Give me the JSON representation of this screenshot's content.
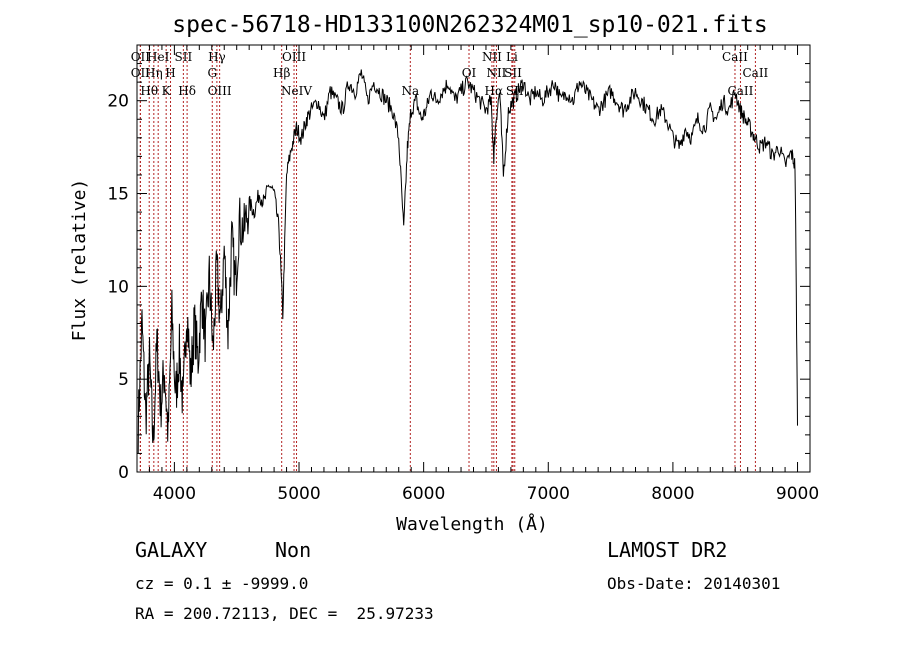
{
  "chart_data": {
    "type": "line",
    "title": "spec-56718-HD133100N262324M01_sp10-021.fits",
    "xlabel": "Wavelength (Å)",
    "ylabel": "Flux (relative)",
    "xlim": [
      3700,
      9100
    ],
    "ylim": [
      0,
      23
    ],
    "x_ticks": [
      4000,
      5000,
      6000,
      7000,
      8000,
      9000
    ],
    "y_ticks": [
      0,
      5,
      10,
      15,
      20
    ],
    "grid": false,
    "series": [
      {
        "x": [
          3710,
          3740,
          3770,
          3800,
          3830,
          3860,
          3890,
          3920,
          3950,
          3980,
          4010,
          4040,
          4070,
          4100,
          4130,
          4160,
          4190,
          4220,
          4250,
          4280,
          4310,
          4340,
          4370,
          4400,
          4430,
          4460,
          4490,
          4520,
          4560,
          4600,
          4640,
          4680,
          4720,
          4760,
          4800,
          4840,
          4870,
          4900,
          4940,
          4980,
          5020,
          5060,
          5100,
          5150,
          5200,
          5250,
          5300,
          5350,
          5400,
          5450,
          5500,
          5550,
          5600,
          5650,
          5700,
          5750,
          5800,
          5840,
          5870,
          5900,
          5940,
          5980,
          6020,
          6060,
          6100,
          6150,
          6200,
          6250,
          6300,
          6350,
          6400,
          6450,
          6500,
          6540,
          6563,
          6580,
          6610,
          6640,
          6680,
          6720,
          6760,
          6800,
          6850,
          6900,
          6950,
          7000,
          7050,
          7100,
          7150,
          7200,
          7250,
          7300,
          7350,
          7400,
          7450,
          7500,
          7550,
          7600,
          7650,
          7700,
          7750,
          7800,
          7850,
          7900,
          7950,
          8000,
          8050,
          8100,
          8150,
          8200,
          8250,
          8300,
          8350,
          8400,
          8450,
          8500,
          8540,
          8580,
          8620,
          8660,
          8700,
          8750,
          8800,
          8850,
          8900,
          8950,
          8980,
          9000
        ],
        "y": [
          2.5,
          8.0,
          3.0,
          6.0,
          1.5,
          7.0,
          3.5,
          5.5,
          2.0,
          8.5,
          4.0,
          6.5,
          3.5,
          9.0,
          5.0,
          8.0,
          6.0,
          9.5,
          7.0,
          10.5,
          6.5,
          11.0,
          8.0,
          12.0,
          7.5,
          12.5,
          10.0,
          13.5,
          13.0,
          14.5,
          14.0,
          15.0,
          14.5,
          15.5,
          15.0,
          13.0,
          8.5,
          16.0,
          17.5,
          18.5,
          18.0,
          19.0,
          19.5,
          20.0,
          19.0,
          20.5,
          20.0,
          19.5,
          21.0,
          20.5,
          21.5,
          20.0,
          21.0,
          20.5,
          20.0,
          19.5,
          18.0,
          13.0,
          17.5,
          19.5,
          20.0,
          19.0,
          19.5,
          20.5,
          20.0,
          20.5,
          21.0,
          20.0,
          20.5,
          21.0,
          20.5,
          20.0,
          19.5,
          20.0,
          17.0,
          19.0,
          20.5,
          16.0,
          19.5,
          20.0,
          20.5,
          21.0,
          20.0,
          20.5,
          20.0,
          20.5,
          21.0,
          20.0,
          20.5,
          20.0,
          21.0,
          20.5,
          20.0,
          19.5,
          20.0,
          20.5,
          20.0,
          19.5,
          20.0,
          20.5,
          20.0,
          19.5,
          19.0,
          19.5,
          19.0,
          18.0,
          17.5,
          18.5,
          18.0,
          19.0,
          18.5,
          19.5,
          19.0,
          20.0,
          19.5,
          20.5,
          19.5,
          19.0,
          18.5,
          18.0,
          17.5,
          17.8,
          17.0,
          17.5,
          16.5,
          17.2,
          16.5,
          2.5
        ]
      }
    ],
    "line_markers": [
      {
        "x": 3727,
        "label": "OII",
        "row": 0
      },
      {
        "x": 3727,
        "label": "OII",
        "row": 1
      },
      {
        "x": 3798,
        "label": "Hθ",
        "row": 2
      },
      {
        "x": 3835,
        "label": "Hη",
        "row": 1
      },
      {
        "x": 3870,
        "label": "HeI",
        "row": 0
      },
      {
        "x": 3934,
        "label": "K",
        "row": 2
      },
      {
        "x": 3969,
        "label": "H",
        "row": 1
      },
      {
        "x": 4072,
        "label": "SII",
        "row": 0
      },
      {
        "x": 4102,
        "label": "Hδ",
        "row": 2
      },
      {
        "x": 4304,
        "label": "G",
        "row": 1
      },
      {
        "x": 4341,
        "label": "Hγ",
        "row": 0
      },
      {
        "x": 4363,
        "label": "OIII",
        "row": 2
      },
      {
        "x": 4861,
        "label": "Hβ",
        "row": 1
      },
      {
        "x": 4960,
        "label": "OIII",
        "row": 0
      },
      {
        "x": 4980,
        "label": "NeIV",
        "row": 2
      },
      {
        "x": 5893,
        "label": "Na",
        "row": 2
      },
      {
        "x": 6364,
        "label": "OI",
        "row": 1
      },
      {
        "x": 6548,
        "label": "NII",
        "row": 0
      },
      {
        "x": 6563,
        "label": "Hα",
        "row": 2
      },
      {
        "x": 6584,
        "label": "NII",
        "row": 1
      },
      {
        "x": 6717,
        "label": "SII",
        "row": 1
      },
      {
        "x": 6708,
        "label": "Li",
        "row": 0
      },
      {
        "x": 6731,
        "label": "SII",
        "row": 2
      },
      {
        "x": 8498,
        "label": "CaII",
        "row": 0
      },
      {
        "x": 8542,
        "label": "CaII",
        "row": 2
      },
      {
        "x": 8662,
        "label": "CaII",
        "row": 1
      }
    ]
  },
  "info": {
    "class_label": "GALAXY",
    "subclass_label": "Non",
    "survey_label": "LAMOST DR2",
    "cz_line": "cz = 0.1 ± -9999.0",
    "obs_date_line": "Obs-Date: 20140301",
    "radec_line": "RA = 200.72113, DEC =  25.97233"
  }
}
